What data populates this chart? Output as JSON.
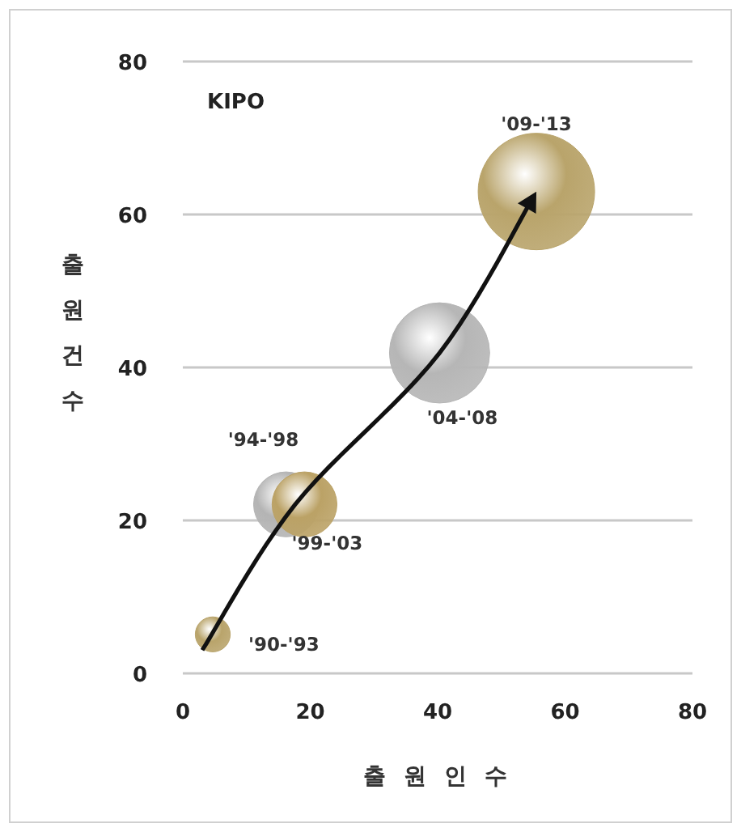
{
  "chart_data": {
    "type": "bubble",
    "xlabel": "출 원 인 수",
    "ylabel": "출원건수",
    "x": [
      4.7,
      16.2,
      19.1,
      40.3,
      55.5
    ],
    "values": [
      5.1,
      22.1,
      22.1,
      41.9,
      63
    ],
    "sizes": [
      0.09,
      0.31,
      0.31,
      0.74,
      1
    ],
    "colors": [
      "#b9a46b",
      "#b4b4b4",
      "#bba266",
      "#b6b6b6",
      "#b9a46b"
    ],
    "value_labels": [
      "'90-'93",
      "'94-'98",
      "'99-'03",
      "'04-'08",
      "'09-'13"
    ],
    "xlim": [
      0,
      80
    ],
    "xticks": [
      0,
      20,
      40,
      60,
      80
    ],
    "ylim": [
      0,
      80
    ],
    "yticks": [
      0,
      20,
      40,
      60,
      80
    ],
    "grid": "y",
    "annotations": [
      "KIPO"
    ]
  }
}
